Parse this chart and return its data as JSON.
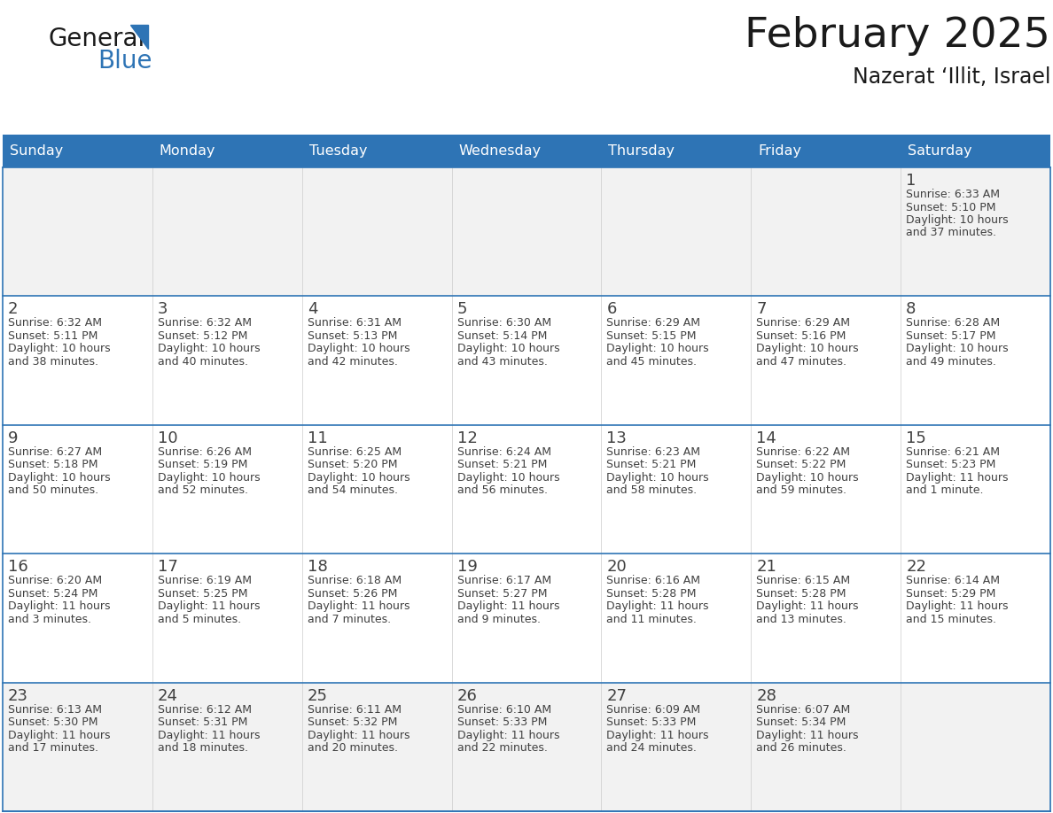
{
  "title": "February 2025",
  "subtitle": "Nazerat ‘Illit, Israel",
  "days_of_week": [
    "Sunday",
    "Monday",
    "Tuesday",
    "Wednesday",
    "Thursday",
    "Friday",
    "Saturday"
  ],
  "header_bg": "#2E74B5",
  "header_text": "#FFFFFF",
  "cell_bg_white": "#FFFFFF",
  "cell_bg_gray": "#F2F2F2",
  "border_color": "#2E74B5",
  "day_num_color": "#404040",
  "text_color": "#404040",
  "title_color": "#1a1a1a",
  "logo_black": "#1a1a1a",
  "logo_blue": "#2E74B5",
  "calendar_data": [
    [
      null,
      null,
      null,
      null,
      null,
      null,
      {
        "day": 1,
        "sunrise": "6:33 AM",
        "sunset": "5:10 PM",
        "daylight": "10 hours",
        "daylight2": "and 37 minutes."
      }
    ],
    [
      {
        "day": 2,
        "sunrise": "6:32 AM",
        "sunset": "5:11 PM",
        "daylight": "10 hours",
        "daylight2": "and 38 minutes."
      },
      {
        "day": 3,
        "sunrise": "6:32 AM",
        "sunset": "5:12 PM",
        "daylight": "10 hours",
        "daylight2": "and 40 minutes."
      },
      {
        "day": 4,
        "sunrise": "6:31 AM",
        "sunset": "5:13 PM",
        "daylight": "10 hours",
        "daylight2": "and 42 minutes."
      },
      {
        "day": 5,
        "sunrise": "6:30 AM",
        "sunset": "5:14 PM",
        "daylight": "10 hours",
        "daylight2": "and 43 minutes."
      },
      {
        "day": 6,
        "sunrise": "6:29 AM",
        "sunset": "5:15 PM",
        "daylight": "10 hours",
        "daylight2": "and 45 minutes."
      },
      {
        "day": 7,
        "sunrise": "6:29 AM",
        "sunset": "5:16 PM",
        "daylight": "10 hours",
        "daylight2": "and 47 minutes."
      },
      {
        "day": 8,
        "sunrise": "6:28 AM",
        "sunset": "5:17 PM",
        "daylight": "10 hours",
        "daylight2": "and 49 minutes."
      }
    ],
    [
      {
        "day": 9,
        "sunrise": "6:27 AM",
        "sunset": "5:18 PM",
        "daylight": "10 hours",
        "daylight2": "and 50 minutes."
      },
      {
        "day": 10,
        "sunrise": "6:26 AM",
        "sunset": "5:19 PM",
        "daylight": "10 hours",
        "daylight2": "and 52 minutes."
      },
      {
        "day": 11,
        "sunrise": "6:25 AM",
        "sunset": "5:20 PM",
        "daylight": "10 hours",
        "daylight2": "and 54 minutes."
      },
      {
        "day": 12,
        "sunrise": "6:24 AM",
        "sunset": "5:21 PM",
        "daylight": "10 hours",
        "daylight2": "and 56 minutes."
      },
      {
        "day": 13,
        "sunrise": "6:23 AM",
        "sunset": "5:21 PM",
        "daylight": "10 hours",
        "daylight2": "and 58 minutes."
      },
      {
        "day": 14,
        "sunrise": "6:22 AM",
        "sunset": "5:22 PM",
        "daylight": "10 hours",
        "daylight2": "and 59 minutes."
      },
      {
        "day": 15,
        "sunrise": "6:21 AM",
        "sunset": "5:23 PM",
        "daylight": "11 hours",
        "daylight2": "and 1 minute."
      }
    ],
    [
      {
        "day": 16,
        "sunrise": "6:20 AM",
        "sunset": "5:24 PM",
        "daylight": "11 hours",
        "daylight2": "and 3 minutes."
      },
      {
        "day": 17,
        "sunrise": "6:19 AM",
        "sunset": "5:25 PM",
        "daylight": "11 hours",
        "daylight2": "and 5 minutes."
      },
      {
        "day": 18,
        "sunrise": "6:18 AM",
        "sunset": "5:26 PM",
        "daylight": "11 hours",
        "daylight2": "and 7 minutes."
      },
      {
        "day": 19,
        "sunrise": "6:17 AM",
        "sunset": "5:27 PM",
        "daylight": "11 hours",
        "daylight2": "and 9 minutes."
      },
      {
        "day": 20,
        "sunrise": "6:16 AM",
        "sunset": "5:28 PM",
        "daylight": "11 hours",
        "daylight2": "and 11 minutes."
      },
      {
        "day": 21,
        "sunrise": "6:15 AM",
        "sunset": "5:28 PM",
        "daylight": "11 hours",
        "daylight2": "and 13 minutes."
      },
      {
        "day": 22,
        "sunrise": "6:14 AM",
        "sunset": "5:29 PM",
        "daylight": "11 hours",
        "daylight2": "and 15 minutes."
      }
    ],
    [
      {
        "day": 23,
        "sunrise": "6:13 AM",
        "sunset": "5:30 PM",
        "daylight": "11 hours",
        "daylight2": "and 17 minutes."
      },
      {
        "day": 24,
        "sunrise": "6:12 AM",
        "sunset": "5:31 PM",
        "daylight": "11 hours",
        "daylight2": "and 18 minutes."
      },
      {
        "day": 25,
        "sunrise": "6:11 AM",
        "sunset": "5:32 PM",
        "daylight": "11 hours",
        "daylight2": "and 20 minutes."
      },
      {
        "day": 26,
        "sunrise": "6:10 AM",
        "sunset": "5:33 PM",
        "daylight": "11 hours",
        "daylight2": "and 22 minutes."
      },
      {
        "day": 27,
        "sunrise": "6:09 AM",
        "sunset": "5:33 PM",
        "daylight": "11 hours",
        "daylight2": "and 24 minutes."
      },
      {
        "day": 28,
        "sunrise": "6:07 AM",
        "sunset": "5:34 PM",
        "daylight": "11 hours",
        "daylight2": "and 26 minutes."
      },
      null
    ]
  ]
}
